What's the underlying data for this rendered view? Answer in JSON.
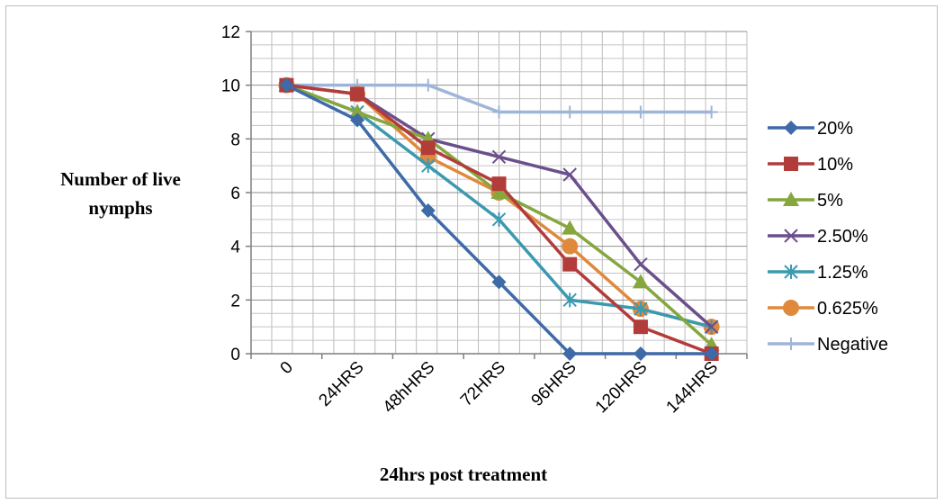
{
  "chart_data": {
    "type": "line",
    "title": "",
    "xlabel": "24hrs post treatment",
    "ylabel_lines": [
      "Number of live",
      "nymphs"
    ],
    "categories": [
      "0",
      "24HRS",
      "48hHRS",
      "72HRS",
      "96HRS",
      "120HRS",
      "144HRS"
    ],
    "ylim": [
      0,
      12
    ],
    "yticks": [
      "0",
      "2",
      "4",
      "6",
      "8",
      "10",
      "12"
    ],
    "grid": true,
    "legend_position": "right",
    "series": [
      {
        "name": "20%",
        "color": "#3e6aa8",
        "marker": "diamond",
        "values": [
          10,
          8.7,
          5.33,
          2.67,
          0,
          0,
          0
        ]
      },
      {
        "name": "10%",
        "color": "#b23c3a",
        "marker": "square",
        "values": [
          10,
          9.67,
          7.67,
          6.33,
          3.33,
          1,
          0
        ]
      },
      {
        "name": "5%",
        "color": "#86a63e",
        "marker": "triangle",
        "values": [
          10,
          9,
          8,
          6,
          4.67,
          2.67,
          0.33
        ]
      },
      {
        "name": "2.50%",
        "color": "#6b4f8c",
        "marker": "x",
        "values": [
          10,
          9.67,
          8,
          7.33,
          6.67,
          3.33,
          1
        ]
      },
      {
        "name": "1.25%",
        "color": "#3b9ab0",
        "marker": "star",
        "values": [
          10,
          9,
          7,
          5,
          2,
          1.67,
          1
        ]
      },
      {
        "name": "0.625%",
        "color": "#e0893c",
        "marker": "circle",
        "values": [
          10,
          9.67,
          7.33,
          6,
          4,
          1.67,
          1
        ]
      },
      {
        "name": "Negative",
        "color": "#9fb5d8",
        "marker": "plus",
        "values": [
          10,
          10,
          10,
          9,
          9,
          9,
          9
        ]
      }
    ]
  }
}
